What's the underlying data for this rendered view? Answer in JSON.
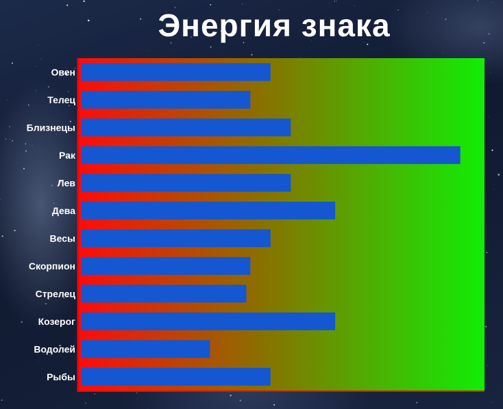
{
  "title": "Энергия знака",
  "colors": {
    "bar": "#1457d0",
    "gradient_start": "#ff0a0a",
    "gradient_mid": "#8a7000",
    "gradient_end": "#10ee05",
    "frame": "#ff0000",
    "label": "#ffffff"
  },
  "chart_data": {
    "type": "bar",
    "orientation": "horizontal",
    "title": "Энергия знака",
    "categories": [
      "Овен",
      "Телец",
      "Близнецы",
      "Рак",
      "Лев",
      "Дева",
      "Весы",
      "Скорпион",
      "Стрелец",
      "Козерог",
      "Водолей",
      "Рыбы"
    ],
    "values": [
      47,
      42,
      52,
      94,
      52,
      63,
      47,
      42,
      41,
      63,
      32,
      47
    ],
    "xlim": [
      0,
      100
    ],
    "xlabel": "",
    "ylabel": "",
    "grid": false,
    "legend": "none"
  }
}
